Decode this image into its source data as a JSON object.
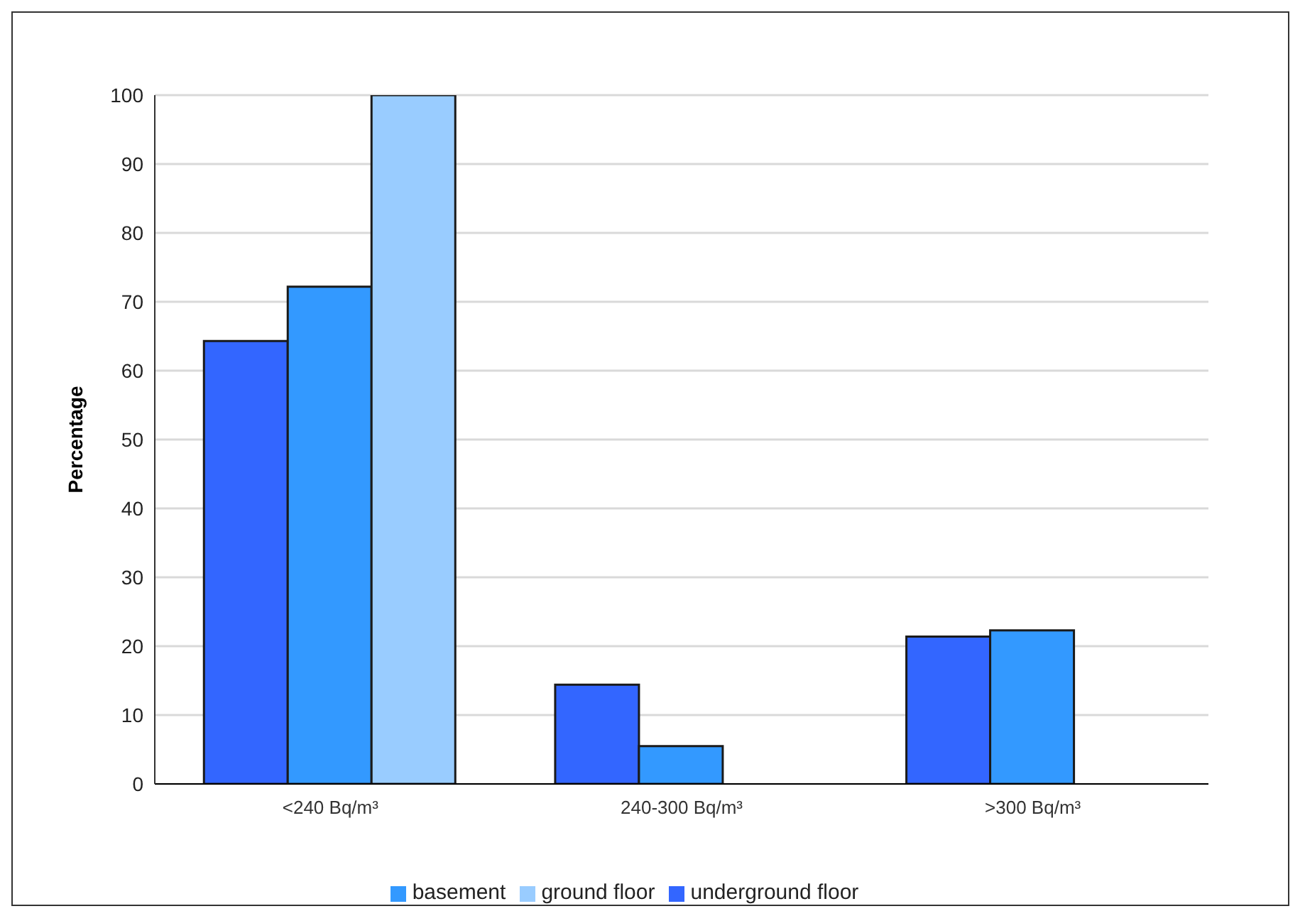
{
  "chart_data": {
    "type": "bar",
    "ylabel": "Percentage",
    "categories": [
      "<240 Bq/m³",
      "240-300 Bq/m³",
      ">300 Bq/m³"
    ],
    "series": [
      {
        "name": "underground floor",
        "color": "#3366ff",
        "values": [
          64.3,
          14.4,
          21.4
        ]
      },
      {
        "name": "basement",
        "color": "#3399ff",
        "values": [
          72.2,
          5.5,
          22.3
        ]
      },
      {
        "name": "ground floor",
        "color": "#99ccff",
        "values": [
          100,
          0,
          0
        ]
      }
    ],
    "ylim": [
      0,
      100
    ],
    "yticks": [
      0,
      10,
      20,
      30,
      40,
      50,
      60,
      70,
      80,
      90,
      100
    ],
    "grid": "y",
    "legend": "bottom"
  }
}
